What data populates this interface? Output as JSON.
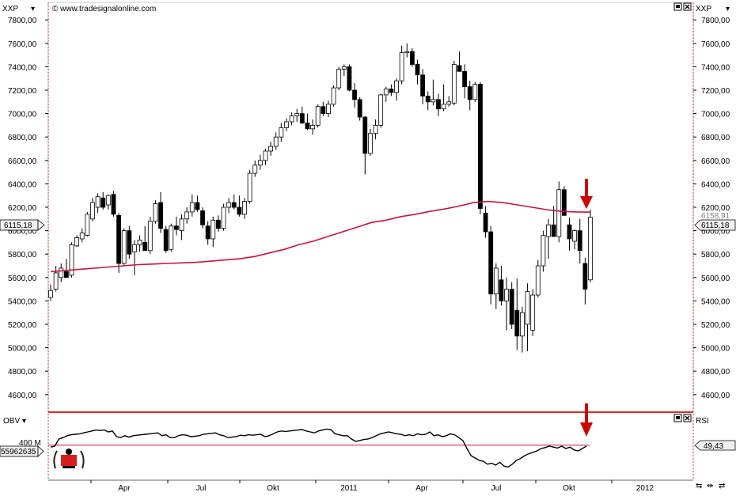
{
  "header": {
    "symbol_left": "XXP",
    "symbol_right": "XXP",
    "source": "© www.tradesignalonline.com"
  },
  "price_panel": {
    "last_price_label": "6115,18",
    "ma_label_partial": "6158,91"
  },
  "lower_panel": {
    "left_indicator": "OBV",
    "right_indicator": "RSI",
    "obv_tick": "400 M",
    "obv_value": "55962635",
    "rsi_value": "49,43"
  },
  "colors": {
    "ma_line": "#c8143c",
    "arrow": "#cc0000",
    "panel_border": "#cc3333",
    "candle_up": "#ffffff",
    "candle_down": "#000000"
  },
  "chart_data": [
    {
      "type": "candlestick",
      "y_ticks": [
        "7800,00",
        "7600,00",
        "7400,00",
        "7200,00",
        "7000,00",
        "6800,00",
        "6600,00",
        "6400,00",
        "6200,00",
        "6000,00",
        "5800,00",
        "5600,00",
        "5400,00",
        "5200,00",
        "5000,00",
        "4800,00",
        "4600,00"
      ],
      "x_ticks": [
        "Apr",
        "Jul",
        "Okt",
        "2011",
        "Apr",
        "Jul",
        "Okt",
        "2012"
      ],
      "ylim": [
        4450,
        7950
      ],
      "candles": [
        {
          "o": 5430,
          "h": 5540,
          "l": 5400,
          "c": 5490
        },
        {
          "o": 5500,
          "h": 5700,
          "l": 5480,
          "c": 5640
        },
        {
          "o": 5600,
          "h": 5720,
          "l": 5560,
          "c": 5680
        },
        {
          "o": 5650,
          "h": 5760,
          "l": 5620,
          "c": 5600
        },
        {
          "o": 5620,
          "h": 5900,
          "l": 5600,
          "c": 5880
        },
        {
          "o": 5870,
          "h": 5960,
          "l": 5860,
          "c": 5940
        },
        {
          "o": 5930,
          "h": 6020,
          "l": 5900,
          "c": 5980
        },
        {
          "o": 5960,
          "h": 6160,
          "l": 5950,
          "c": 6140
        },
        {
          "o": 6100,
          "h": 6280,
          "l": 6080,
          "c": 6240
        },
        {
          "o": 6200,
          "h": 6320,
          "l": 6150,
          "c": 6290
        },
        {
          "o": 6280,
          "h": 6330,
          "l": 6180,
          "c": 6200
        },
        {
          "o": 6220,
          "h": 6310,
          "l": 6180,
          "c": 6300
        },
        {
          "o": 6310,
          "h": 6340,
          "l": 6120,
          "c": 6140
        },
        {
          "o": 6130,
          "h": 6150,
          "l": 5640,
          "c": 5720
        },
        {
          "o": 5720,
          "h": 6020,
          "l": 5700,
          "c": 6000
        },
        {
          "o": 6000,
          "h": 6040,
          "l": 5760,
          "c": 5800
        },
        {
          "o": 5820,
          "h": 5920,
          "l": 5620,
          "c": 5880
        },
        {
          "o": 5880,
          "h": 5960,
          "l": 5820,
          "c": 5920
        },
        {
          "o": 5900,
          "h": 6040,
          "l": 5840,
          "c": 5830
        },
        {
          "o": 5830,
          "h": 6120,
          "l": 5800,
          "c": 6080
        },
        {
          "o": 6080,
          "h": 6260,
          "l": 6060,
          "c": 6230
        },
        {
          "o": 6240,
          "h": 6330,
          "l": 5980,
          "c": 6020
        },
        {
          "o": 6010,
          "h": 6040,
          "l": 5810,
          "c": 5830
        },
        {
          "o": 5840,
          "h": 6060,
          "l": 5820,
          "c": 6040
        },
        {
          "o": 6040,
          "h": 6120,
          "l": 5960,
          "c": 6010
        },
        {
          "o": 6000,
          "h": 6140,
          "l": 5920,
          "c": 6100
        },
        {
          "o": 6100,
          "h": 6200,
          "l": 6060,
          "c": 6160
        },
        {
          "o": 6160,
          "h": 6310,
          "l": 6120,
          "c": 6240
        },
        {
          "o": 6240,
          "h": 6300,
          "l": 6160,
          "c": 6180
        },
        {
          "o": 6170,
          "h": 6200,
          "l": 6020,
          "c": 6050
        },
        {
          "o": 6040,
          "h": 6080,
          "l": 5880,
          "c": 5930
        },
        {
          "o": 5930,
          "h": 6120,
          "l": 5860,
          "c": 6090
        },
        {
          "o": 6090,
          "h": 6130,
          "l": 5990,
          "c": 6020
        },
        {
          "o": 6020,
          "h": 6230,
          "l": 6000,
          "c": 6200
        },
        {
          "o": 6200,
          "h": 6280,
          "l": 6150,
          "c": 6240
        },
        {
          "o": 6240,
          "h": 6310,
          "l": 6180,
          "c": 6200
        },
        {
          "o": 6200,
          "h": 6300,
          "l": 6120,
          "c": 6140
        },
        {
          "o": 6140,
          "h": 6280,
          "l": 6100,
          "c": 6250
        },
        {
          "o": 6250,
          "h": 6520,
          "l": 6230,
          "c": 6490
        },
        {
          "o": 6490,
          "h": 6600,
          "l": 6460,
          "c": 6560
        },
        {
          "o": 6560,
          "h": 6650,
          "l": 6520,
          "c": 6600
        },
        {
          "o": 6600,
          "h": 6700,
          "l": 6560,
          "c": 6680
        },
        {
          "o": 6680,
          "h": 6760,
          "l": 6640,
          "c": 6720
        },
        {
          "o": 6720,
          "h": 6840,
          "l": 6690,
          "c": 6800
        },
        {
          "o": 6800,
          "h": 6920,
          "l": 6760,
          "c": 6880
        },
        {
          "o": 6880,
          "h": 6960,
          "l": 6850,
          "c": 6930
        },
        {
          "o": 6930,
          "h": 7010,
          "l": 6900,
          "c": 6980
        },
        {
          "o": 6980,
          "h": 7040,
          "l": 6930,
          "c": 7000
        },
        {
          "o": 7000,
          "h": 7060,
          "l": 6910,
          "c": 6920
        },
        {
          "o": 6920,
          "h": 7000,
          "l": 6860,
          "c": 6870
        },
        {
          "o": 6870,
          "h": 6950,
          "l": 6820,
          "c": 6900
        },
        {
          "o": 6900,
          "h": 7080,
          "l": 6880,
          "c": 7060
        },
        {
          "o": 7060,
          "h": 7100,
          "l": 6980,
          "c": 7000
        },
        {
          "o": 7000,
          "h": 7110,
          "l": 6970,
          "c": 7080
        },
        {
          "o": 7080,
          "h": 7240,
          "l": 7060,
          "c": 7220
        },
        {
          "o": 7220,
          "h": 7400,
          "l": 7200,
          "c": 7380
        },
        {
          "o": 7380,
          "h": 7420,
          "l": 7320,
          "c": 7400
        },
        {
          "o": 7400,
          "h": 7420,
          "l": 7190,
          "c": 7200
        },
        {
          "o": 7200,
          "h": 7260,
          "l": 7050,
          "c": 7120
        },
        {
          "o": 7120,
          "h": 7140,
          "l": 6940,
          "c": 6970
        },
        {
          "o": 6970,
          "h": 6980,
          "l": 6480,
          "c": 6660
        },
        {
          "o": 6660,
          "h": 6870,
          "l": 6640,
          "c": 6830
        },
        {
          "o": 6830,
          "h": 6950,
          "l": 6780,
          "c": 6900
        },
        {
          "o": 6900,
          "h": 7170,
          "l": 6880,
          "c": 7160
        },
        {
          "o": 7160,
          "h": 7230,
          "l": 7100,
          "c": 7210
        },
        {
          "o": 7210,
          "h": 7250,
          "l": 7150,
          "c": 7180
        },
        {
          "o": 7180,
          "h": 7300,
          "l": 7110,
          "c": 7280
        },
        {
          "o": 7280,
          "h": 7580,
          "l": 7250,
          "c": 7520
        },
        {
          "o": 7520,
          "h": 7600,
          "l": 7480,
          "c": 7530
        },
        {
          "o": 7530,
          "h": 7560,
          "l": 7400,
          "c": 7420
        },
        {
          "o": 7420,
          "h": 7460,
          "l": 7250,
          "c": 7330
        },
        {
          "o": 7330,
          "h": 7380,
          "l": 7080,
          "c": 7150
        },
        {
          "o": 7150,
          "h": 7190,
          "l": 7030,
          "c": 7100
        },
        {
          "o": 7100,
          "h": 7290,
          "l": 7070,
          "c": 7120
        },
        {
          "o": 7120,
          "h": 7170,
          "l": 6980,
          "c": 7040
        },
        {
          "o": 7040,
          "h": 7250,
          "l": 7020,
          "c": 7080
        },
        {
          "o": 7080,
          "h": 7150,
          "l": 7060,
          "c": 7100
        },
        {
          "o": 7090,
          "h": 7450,
          "l": 7070,
          "c": 7420
        },
        {
          "o": 7410,
          "h": 7530,
          "l": 7380,
          "c": 7360
        },
        {
          "o": 7360,
          "h": 7420,
          "l": 7130,
          "c": 7230
        },
        {
          "o": 7230,
          "h": 7280,
          "l": 7030,
          "c": 7120
        },
        {
          "o": 7120,
          "h": 7270,
          "l": 7100,
          "c": 7250
        },
        {
          "o": 7250,
          "h": 7270,
          "l": 6140,
          "c": 6190
        },
        {
          "o": 6150,
          "h": 6210,
          "l": 5940,
          "c": 5990
        },
        {
          "o": 5990,
          "h": 6040,
          "l": 5370,
          "c": 5460
        },
        {
          "o": 5460,
          "h": 5720,
          "l": 5330,
          "c": 5680
        },
        {
          "o": 5580,
          "h": 5700,
          "l": 5360,
          "c": 5400
        },
        {
          "o": 5400,
          "h": 5600,
          "l": 5150,
          "c": 5500
        },
        {
          "o": 5500,
          "h": 5560,
          "l": 5160,
          "c": 5200
        },
        {
          "o": 5320,
          "h": 5590,
          "l": 4980,
          "c": 5100
        },
        {
          "o": 5100,
          "h": 5350,
          "l": 4960,
          "c": 5300
        },
        {
          "o": 5200,
          "h": 5550,
          "l": 4970,
          "c": 5480
        },
        {
          "o": 5150,
          "h": 5500,
          "l": 5100,
          "c": 5450
        },
        {
          "o": 5450,
          "h": 5750,
          "l": 5430,
          "c": 5700
        },
        {
          "o": 5700,
          "h": 6000,
          "l": 5650,
          "c": 5960
        },
        {
          "o": 5950,
          "h": 6100,
          "l": 5760,
          "c": 6050
        },
        {
          "o": 6050,
          "h": 6210,
          "l": 5950,
          "c": 5950
        },
        {
          "o": 5950,
          "h": 6420,
          "l": 5900,
          "c": 6350
        },
        {
          "o": 6350,
          "h": 6380,
          "l": 6130,
          "c": 6130
        },
        {
          "o": 6050,
          "h": 6110,
          "l": 5830,
          "c": 5930
        },
        {
          "o": 5910,
          "h": 6010,
          "l": 5840,
          "c": 6000
        },
        {
          "o": 6000,
          "h": 6100,
          "l": 5720,
          "c": 5830
        },
        {
          "o": 5720,
          "h": 5770,
          "l": 5370,
          "c": 5500
        },
        {
          "o": 5580,
          "h": 6180,
          "l": 5560,
          "c": 6115
        }
      ],
      "ma": [
        5650,
        5660,
        5670,
        5680,
        5690,
        5700,
        5710,
        5715,
        5720,
        5725,
        5730,
        5740,
        5750,
        5760,
        5780,
        5810,
        5840,
        5880,
        5910,
        5950,
        5990,
        6030,
        6070,
        6090,
        6120,
        6140,
        6165,
        6185,
        6210,
        6240,
        6250,
        6240,
        6220,
        6200,
        6180,
        6165,
        6160,
        6158
      ],
      "annotations": [
        "arrow-price",
        "arrow-indicator"
      ]
    },
    {
      "type": "line",
      "name": "OBV",
      "x_ticks": [
        "Apr",
        "Jul",
        "Okt",
        "2011",
        "Apr",
        "Jul",
        "Okt",
        "2012"
      ],
      "reference_level": "400 M",
      "values": [
        0.58,
        0.6,
        0.75,
        0.78,
        0.82,
        0.84,
        0.85,
        0.86,
        0.88,
        0.9,
        0.92,
        0.94,
        0.93,
        0.94,
        0.9,
        0.92,
        0.8,
        0.78,
        0.82,
        0.79,
        0.82,
        0.83,
        0.84,
        0.85,
        0.86,
        0.87,
        0.88,
        0.82,
        0.84,
        0.78,
        0.78,
        0.82,
        0.84,
        0.83,
        0.8,
        0.81,
        0.82,
        0.85,
        0.86,
        0.87,
        0.88,
        0.84,
        0.82,
        0.78,
        0.79,
        0.8,
        0.83,
        0.82,
        0.84,
        0.83,
        0.84,
        0.85,
        0.8,
        0.82,
        0.86,
        0.9,
        0.92,
        0.91,
        0.92,
        0.93,
        0.94,
        0.95,
        0.92,
        0.9,
        0.88,
        0.92,
        0.94,
        0.96,
        0.95,
        0.86,
        0.84,
        0.82,
        0.82,
        0.75,
        0.7,
        0.72,
        0.74,
        0.75,
        0.78,
        0.82,
        0.86,
        0.88,
        0.9,
        0.88,
        0.86,
        0.85,
        0.82,
        0.84,
        0.82,
        0.86,
        0.84,
        0.85,
        0.9,
        0.82,
        0.84,
        0.8,
        0.82,
        0.86,
        0.84,
        0.78,
        0.72,
        0.55,
        0.4,
        0.35,
        0.3,
        0.28,
        0.22,
        0.24,
        0.2,
        0.26,
        0.18,
        0.16,
        0.22,
        0.3,
        0.34,
        0.4,
        0.44,
        0.47,
        0.5,
        0.55,
        0.57,
        0.6,
        0.58,
        0.56,
        0.6,
        0.55,
        0.58,
        0.52,
        0.5,
        0.55,
        0.6
      ]
    }
  ]
}
